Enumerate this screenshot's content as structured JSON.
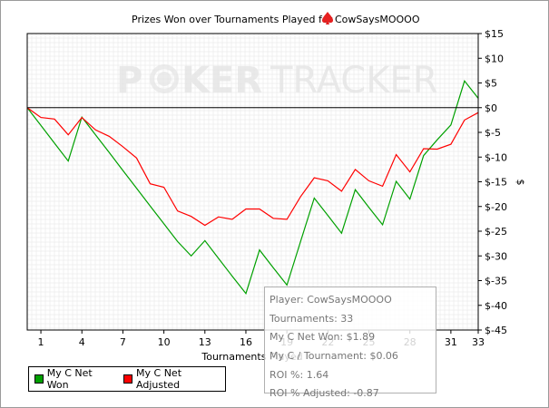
{
  "chart_data": {
    "type": "line",
    "title": "Prizes Won over Tournaments Played for",
    "player_name": "CowSaysMOOOO",
    "player_icon": "spade-icon",
    "xlabel": "Tournaments Played",
    "ylabel": "$",
    "xlim": [
      0,
      33
    ],
    "ylim": [
      -45,
      15
    ],
    "x_ticks": [
      1,
      4,
      7,
      10,
      13,
      16,
      19,
      22,
      25,
      28,
      31,
      33
    ],
    "y_ticks": [
      {
        "v": 15,
        "label": "$15"
      },
      {
        "v": 10,
        "label": "$10"
      },
      {
        "v": 5,
        "label": "$5"
      },
      {
        "v": 0,
        "label": "$0"
      },
      {
        "v": -5,
        "label": "$-5"
      },
      {
        "v": -10,
        "label": "$-10"
      },
      {
        "v": -15,
        "label": "$-15"
      },
      {
        "v": -20,
        "label": "$-20"
      },
      {
        "v": -25,
        "label": "$-25"
      },
      {
        "v": -30,
        "label": "$-30"
      },
      {
        "v": -35,
        "label": "$-35"
      },
      {
        "v": -40,
        "label": "$-40"
      },
      {
        "v": -45,
        "label": "$-45"
      }
    ],
    "grid": true,
    "legend_position": "bottom-left",
    "x": [
      0,
      1,
      2,
      3,
      4,
      5,
      6,
      7,
      8,
      9,
      10,
      11,
      12,
      13,
      14,
      15,
      16,
      17,
      18,
      19,
      20,
      21,
      22,
      23,
      24,
      25,
      26,
      27,
      28,
      29,
      30,
      31,
      32,
      33
    ],
    "series": [
      {
        "name": "My C Net Won",
        "color": "#00a000",
        "values": [
          0,
          -3.6,
          -7.2,
          -10.8,
          -1.9,
          -5.5,
          -9.1,
          -12.7,
          -16.3,
          -19.9,
          -23.5,
          -27.1,
          -30.0,
          -26.9,
          -30.5,
          -34.1,
          -37.6,
          -28.8,
          -32.4,
          -35.9,
          -27.1,
          -18.3,
          -21.8,
          -25.4,
          -16.6,
          -20.2,
          -23.7,
          -14.9,
          -18.5,
          -9.7,
          -6.5,
          -3.5,
          5.4,
          1.9
        ]
      },
      {
        "name": "My C Net Adjusted",
        "color": "#ff0000",
        "values": [
          0,
          -2.0,
          -2.3,
          -5.5,
          -2.0,
          -4.5,
          -5.8,
          -7.9,
          -10.2,
          -15.4,
          -16.1,
          -20.9,
          -22.0,
          -23.8,
          -22.1,
          -22.6,
          -20.5,
          -20.5,
          -22.4,
          -22.6,
          -18.0,
          -14.2,
          -14.8,
          -16.9,
          -12.5,
          -14.8,
          -15.9,
          -9.5,
          -13.0,
          -8.3,
          -8.4,
          -7.4,
          -2.5,
          -1.0
        ]
      }
    ]
  },
  "watermark": {
    "part1": "P",
    "part2": "KER",
    "part3": "TRACKER"
  },
  "tooltip": {
    "player": "Player: CowSaysMOOOO",
    "tournaments": "Tournaments: 33",
    "net_won": "My C Net Won: $1.89",
    "per_tournament": "My C / Tournament: $0.06",
    "roi": "ROI %: 1.64",
    "roi_adjusted": "ROI % Adjusted: -0.87"
  },
  "colors": {
    "grid": "#e4e4e4",
    "zero_line": "#000000",
    "axis": "#000000"
  }
}
